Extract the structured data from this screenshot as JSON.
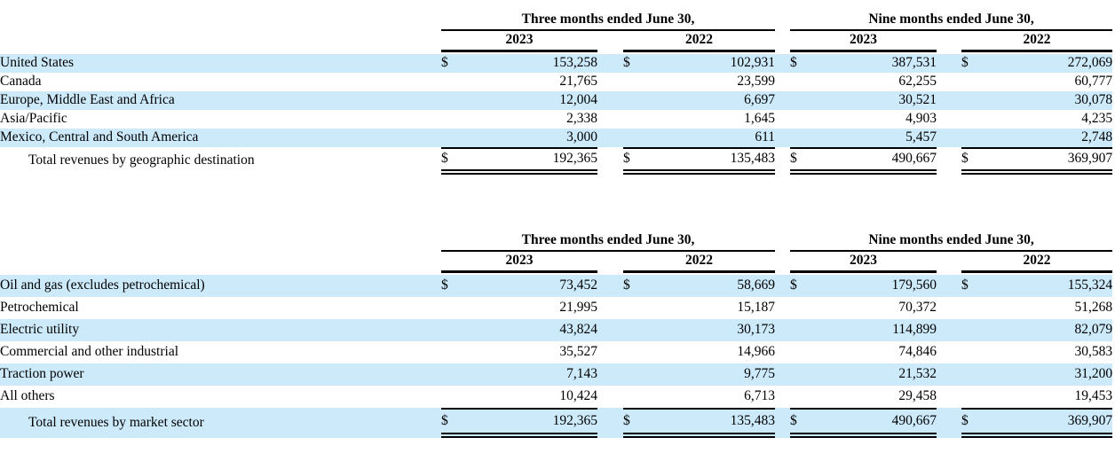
{
  "meta": {
    "highlight_color": "#CDEAFB",
    "rule_color": "#000000",
    "currency_symbol": "$"
  },
  "tables": [
    {
      "name": "revenues-by-geographic-destination",
      "column_groups": [
        "Three months ended June 30,",
        "Nine months ended June 30,"
      ],
      "year_headers": [
        "2023",
        "2022",
        "2023",
        "2022"
      ],
      "rows": [
        {
          "label": "United States",
          "currency": "$",
          "highlighted": true,
          "values": [
            "153,258",
            "102,931",
            "387,531",
            "272,069"
          ]
        },
        {
          "label": "Canada",
          "highlighted": false,
          "values": [
            "21,765",
            "23,599",
            "62,255",
            "60,777"
          ]
        },
        {
          "label": "Europe, Middle East and Africa",
          "highlighted": true,
          "values": [
            "12,004",
            "6,697",
            "30,521",
            "30,078"
          ]
        },
        {
          "label": "Asia/Pacific",
          "highlighted": false,
          "values": [
            "2,338",
            "1,645",
            "4,903",
            "4,235"
          ]
        },
        {
          "label": "Mexico, Central and South America",
          "highlighted": true,
          "values": [
            "3,000",
            "611",
            "5,457",
            "2,748"
          ]
        }
      ],
      "total_row": {
        "label": "Total revenues by geographic destination",
        "currency": "$",
        "highlighted": false,
        "values": [
          "192,365",
          "135,483",
          "490,667",
          "369,907"
        ]
      }
    },
    {
      "name": "revenues-by-market-sector",
      "column_groups": [
        "Three months ended June 30,",
        "Nine months ended June 30,"
      ],
      "year_headers": [
        "2023",
        "2022",
        "2023",
        "2022"
      ],
      "rows": [
        {
          "label": "Oil and gas (excludes petrochemical)",
          "currency": "$",
          "highlighted": true,
          "values": [
            "73,452",
            "58,669",
            "179,560",
            "155,324"
          ]
        },
        {
          "label": "Petrochemical",
          "highlighted": false,
          "values": [
            "21,995",
            "15,187",
            "70,372",
            "51,268"
          ]
        },
        {
          "label": "Electric utility",
          "highlighted": true,
          "values": [
            "43,824",
            "30,173",
            "114,899",
            "82,079"
          ]
        },
        {
          "label": "Commercial and other industrial",
          "highlighted": false,
          "values": [
            "35,527",
            "14,966",
            "74,846",
            "30,583"
          ]
        },
        {
          "label": "Traction power",
          "highlighted": true,
          "values": [
            "7,143",
            "9,775",
            "21,532",
            "31,200"
          ]
        },
        {
          "label": "All others",
          "highlighted": false,
          "values": [
            "10,424",
            "6,713",
            "29,458",
            "19,453"
          ]
        }
      ],
      "total_row": {
        "label": "Total revenues by market sector",
        "currency": "$",
        "highlighted": true,
        "values": [
          "192,365",
          "135,483",
          "490,667",
          "369,907"
        ]
      }
    }
  ]
}
